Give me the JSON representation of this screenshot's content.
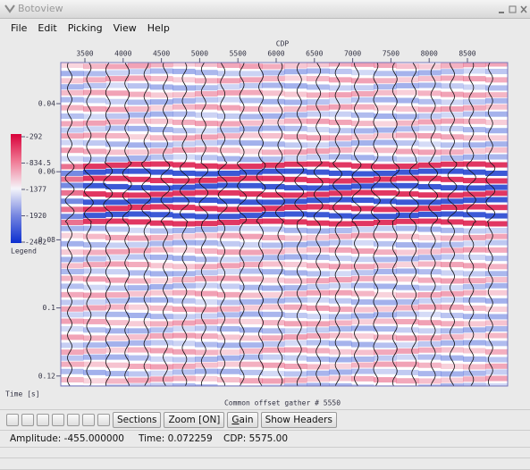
{
  "window": {
    "title": "Botoview"
  },
  "menu": [
    "File",
    "Edit",
    "Picking",
    "View",
    "Help"
  ],
  "plot": {
    "x_axis_label": "CDP",
    "x_ticks": [
      "3500",
      "4000",
      "4500",
      "5000",
      "5500",
      "6000",
      "6500",
      "7000",
      "7500",
      "8000",
      "8500"
    ],
    "y_axis_label": "Time [s]",
    "y_ticks": [
      "0.04",
      "0.06",
      "0.08",
      "0.1",
      "0.12"
    ],
    "caption": "Common offset gather # 5550"
  },
  "legend": {
    "title": "Legend",
    "labels": [
      "-292",
      "-834.5",
      "-1377",
      "-1920",
      "-2462"
    ]
  },
  "toolbar": {
    "buttons": [
      "Sections",
      "Zoom [ON]",
      "Gain",
      "Show Headers"
    ]
  },
  "status": {
    "amplitude": "Amplitude: -455.000000",
    "time": "Time: 0.072259",
    "cdp": "CDP: 5575.00"
  }
}
